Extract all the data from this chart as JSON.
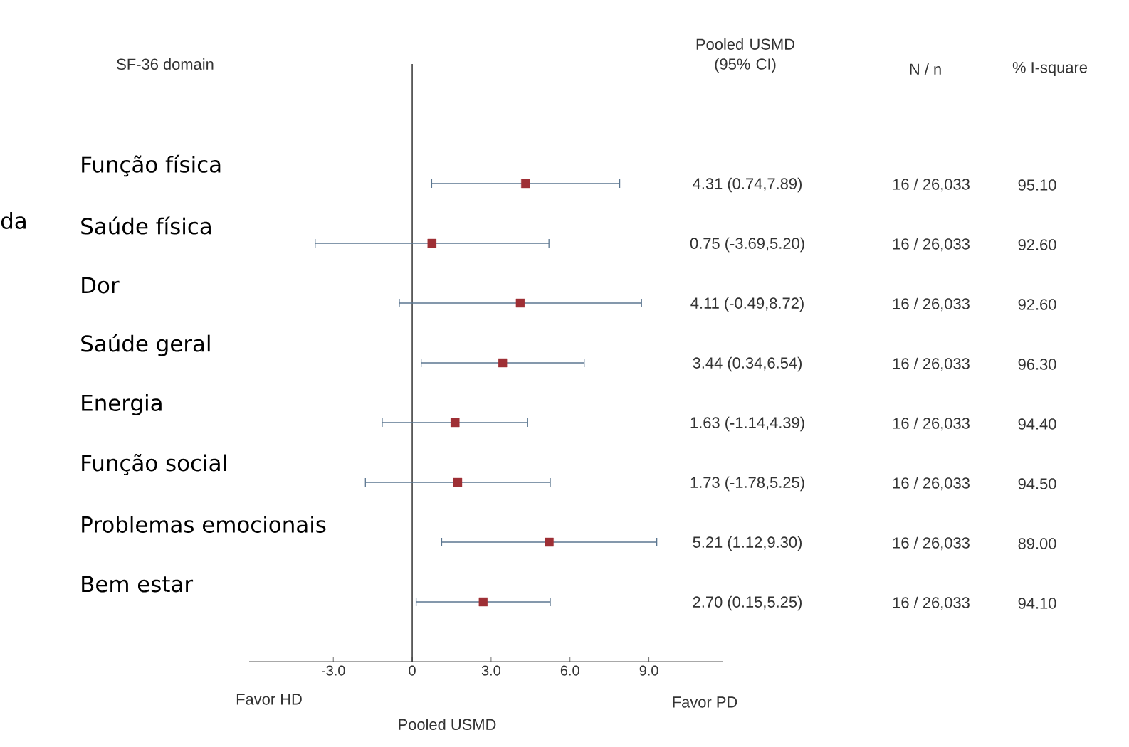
{
  "chart_data": {
    "type": "scatter",
    "orientation": "horizontal",
    "ylabel": "SF-36 domain",
    "xlabel": "Pooled USMD",
    "categories": [
      "Função física",
      "Saúde física",
      "Dor",
      "Saúde geral",
      "Energia",
      "Função social",
      "Problemas emocionais",
      "Bem estar"
    ],
    "series": [
      {
        "color": "#9e2f35",
        "values": [
          4.31,
          0.75,
          4.11,
          3.44,
          1.63,
          1.73,
          5.21,
          2.7
        ],
        "errors": [
          [
            0.74,
            7.89
          ],
          [
            -3.69,
            5.2
          ],
          [
            -0.49,
            8.72
          ],
          [
            0.34,
            6.54
          ],
          [
            -1.14,
            4.39
          ],
          [
            -1.78,
            5.25
          ],
          [
            1.12,
            9.3
          ],
          [
            0.15,
            5.25
          ]
        ],
        "value_labels": [
          "4.31 (0.74,7.89)",
          "0.75 (-3.69,5.20)",
          "4.11 (-0.49,8.72)",
          "3.44 (0.34,6.54)",
          "1.63 (-1.14,4.39)",
          "1.73 (-1.78,5.25)",
          "5.21 (1.12,9.30)",
          "2.70 (0.15,5.25)"
        ]
      }
    ],
    "xlim": [
      -6.2,
      11.8
    ],
    "xticks": [
      {
        "value": -3,
        "label": "-3.0"
      },
      0,
      {
        "value": 3,
        "label": "3.0"
      },
      {
        "value": 6,
        "label": "6.0"
      },
      {
        "value": 9,
        "label": "9.0"
      }
    ],
    "ref_lines": [
      {
        "axis": "x",
        "value": 0,
        "color": "#333333"
      }
    ],
    "marker": "square",
    "grid": false,
    "annotations": [
      "Favor HD",
      "Favor PD",
      "Pooled USMD (95% CI)",
      "N / n",
      "% I-square",
      "16 / 26,033",
      "16 / 26,033",
      "16 / 26,033",
      "16 / 26,033",
      "16 / 26,033",
      "16 / 26,033",
      "16 / 26,033",
      "16 / 26,033",
      "95.10",
      "92.60",
      "92.60",
      "96.30",
      "94.40",
      "94.50",
      "89.00",
      "94.10",
      "da"
    ]
  }
}
